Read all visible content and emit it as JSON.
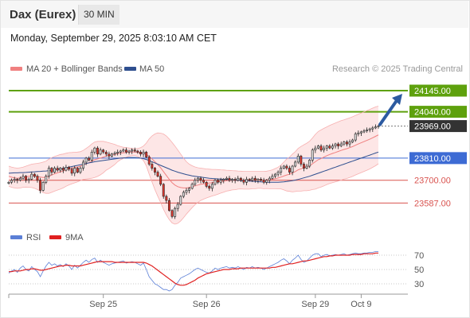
{
  "header": {
    "instrument": "Dax (Eurex)",
    "timeframe": "30 MIN",
    "datetime": "Monday, September 29, 2025 8:03:10 AM CET"
  },
  "legend": {
    "bollinger": "MA 20 + Bollinger Bands",
    "ma50": "MA 50",
    "rsi": "RSI",
    "ma9": "9MA",
    "credit": "Research © 2025 Trading Central"
  },
  "colors": {
    "resistance": "#5ea10d",
    "current": "#333333",
    "pivot": "#3d6bd4",
    "support": "#d9534f",
    "up_candle": "#dddddd",
    "down_candle": "#e0352b",
    "bollinger": "#f08080",
    "ma50": "#2f4f8f",
    "rsi": "#5b7fd6",
    "rsi_ma": "#e02020",
    "arrow": "#2c5aa0"
  },
  "chart_data": [
    {
      "type": "candlestick",
      "series_name": "Dax (Eurex)",
      "ylim": [
        23470,
        24220
      ],
      "levels": [
        {
          "label": "24145.00",
          "value": 24145,
          "kind": "resistance"
        },
        {
          "label": "24040.00",
          "value": 24040,
          "kind": "resistance"
        },
        {
          "label": "23969.00",
          "value": 23969,
          "kind": "current"
        },
        {
          "label": "23810.00",
          "value": 23810,
          "kind": "pivot"
        },
        {
          "label": "23700.00",
          "value": 23700,
          "kind": "support"
        },
        {
          "label": "23587.00",
          "value": 23587,
          "kind": "support"
        }
      ],
      "close": [
        23690,
        23700,
        23705,
        23700,
        23710,
        23720,
        23700,
        23705,
        23730,
        23720,
        23700,
        23650,
        23690,
        23720,
        23760,
        23740,
        23760,
        23750,
        23760,
        23750,
        23765,
        23755,
        23735,
        23760,
        23740,
        23760,
        23790,
        23810,
        23800,
        23840,
        23860,
        23830,
        23850,
        23840,
        23830,
        23820,
        23830,
        23835,
        23840,
        23845,
        23850,
        23840,
        23845,
        23850,
        23845,
        23840,
        23830,
        23840,
        23815,
        23780,
        23760,
        23740,
        23720,
        23680,
        23620,
        23600,
        23550,
        23520,
        23560,
        23580,
        23620,
        23640,
        23650,
        23660,
        23680,
        23700,
        23710,
        23700,
        23690,
        23670,
        23660,
        23680,
        23700,
        23690,
        23700,
        23705,
        23710,
        23700,
        23705,
        23700,
        23710,
        23700,
        23690,
        23705,
        23700,
        23710,
        23700,
        23705,
        23700,
        23690,
        23700,
        23710,
        23720,
        23730,
        23740,
        23760,
        23770,
        23760,
        23740,
        23770,
        23790,
        23820,
        23780,
        23760,
        23770,
        23800,
        23850,
        23860,
        23870,
        23850,
        23860,
        23870,
        23860,
        23870,
        23880,
        23870,
        23880,
        23890,
        23880,
        23890,
        23900,
        23930,
        23935,
        23940,
        23945,
        23950,
        23955,
        23960,
        23965,
        23969
      ],
      "arrow_target": 24145,
      "bollinger_middle": [
        23720,
        23715,
        23712,
        23710,
        23712,
        23715,
        23718,
        23720,
        23722,
        23721,
        23719,
        23716,
        23714,
        23715,
        23720,
        23726,
        23732,
        23737,
        23742,
        23746,
        23752,
        23757,
        23760,
        23763,
        23766,
        23770,
        23776,
        23782,
        23788,
        23795,
        23802,
        23806,
        23810,
        23815,
        23820,
        23822,
        23825,
        23828,
        23832,
        23835,
        23836,
        23838,
        23840,
        23840,
        23840,
        23838,
        23836,
        23834,
        23828,
        23818,
        23806,
        23792,
        23778,
        23762,
        23743,
        23724,
        23705,
        23688,
        23676,
        23668,
        23664,
        23662,
        23662,
        23664,
        23668,
        23672,
        23676,
        23680,
        23682,
        23684,
        23686,
        23688,
        23690,
        23692,
        23694,
        23696,
        23698,
        23699,
        23700,
        23700,
        23701,
        23701,
        23700,
        23700,
        23700,
        23701,
        23701,
        23702,
        23702,
        23701,
        23702,
        23703,
        23705,
        23708,
        23711,
        23716,
        23721,
        23726,
        23730,
        23736,
        23743,
        23752,
        23757,
        23762,
        23766,
        23772,
        23782,
        23792,
        23802,
        23808,
        23815,
        23822,
        23828,
        23833,
        23838,
        23843,
        23848,
        23853,
        23857,
        23862,
        23867,
        23874,
        23880,
        23886,
        23892,
        23898,
        23904,
        23911,
        23918,
        23925
      ],
      "bollinger_upper": [
        23770,
        23765,
        23762,
        23760,
        23762,
        23765,
        23770,
        23775,
        23780,
        23782,
        23784,
        23786,
        23790,
        23795,
        23805,
        23812,
        23818,
        23823,
        23828,
        23830,
        23834,
        23837,
        23838,
        23839,
        23840,
        23842,
        23848,
        23858,
        23868,
        23880,
        23890,
        23893,
        23893,
        23893,
        23890,
        23886,
        23882,
        23878,
        23872,
        23868,
        23864,
        23862,
        23860,
        23858,
        23857,
        23858,
        23862,
        23870,
        23885,
        23905,
        23920,
        23930,
        23935,
        23934,
        23930,
        23920,
        23905,
        23888,
        23870,
        23850,
        23830,
        23810,
        23792,
        23780,
        23772,
        23766,
        23762,
        23760,
        23758,
        23756,
        23755,
        23754,
        23754,
        23753,
        23752,
        23751,
        23750,
        23749,
        23748,
        23747,
        23746,
        23745,
        23744,
        23744,
        23744,
        23744,
        23744,
        23744,
        23744,
        23744,
        23745,
        23748,
        23752,
        23758,
        23765,
        23775,
        23790,
        23805,
        23815,
        23830,
        23842,
        23858,
        23868,
        23876,
        23884,
        23894,
        23910,
        23928,
        23942,
        23950,
        23958,
        23965,
        23972,
        23978,
        23984,
        23990,
        23996,
        24000,
        24005,
        24010,
        24015,
        24022,
        24028,
        24034,
        24040,
        24046,
        24052,
        24058,
        24064,
        24068
      ],
      "bollinger_lower": [
        23670,
        23665,
        23662,
        23660,
        23662,
        23665,
        23666,
        23665,
        23664,
        23660,
        23654,
        23646,
        23638,
        23635,
        23635,
        23640,
        23646,
        23651,
        23656,
        23662,
        23670,
        23677,
        23682,
        23687,
        23692,
        23698,
        23704,
        23706,
        23708,
        23710,
        23714,
        23719,
        23727,
        23737,
        23750,
        23758,
        23768,
        23778,
        23792,
        23802,
        23808,
        23814,
        23820,
        23822,
        23823,
        23818,
        23810,
        23798,
        23771,
        23731,
        23692,
        23654,
        23621,
        23590,
        23556,
        23528,
        23505,
        23488,
        23482,
        23486,
        23498,
        23514,
        23532,
        23548,
        23564,
        23578,
        23590,
        23600,
        23606,
        23612,
        23617,
        23622,
        23626,
        23631,
        23636,
        23641,
        23646,
        23649,
        23652,
        23653,
        23656,
        23657,
        23656,
        23656,
        23656,
        23658,
        23658,
        23660,
        23660,
        23658,
        23659,
        23658,
        23658,
        23658,
        23657,
        23657,
        23652,
        23647,
        23645,
        23642,
        23644,
        23646,
        23646,
        23648,
        23648,
        23650,
        23654,
        23656,
        23662,
        23666,
        23672,
        23679,
        23684,
        23688,
        23692,
        23696,
        23700,
        23706,
        23709,
        23714,
        23719,
        23726,
        23732,
        23738,
        23744,
        23750,
        23756,
        23764,
        23772,
        23782
      ],
      "ma50": [
        23735,
        23736,
        23737,
        23737,
        23738,
        23738,
        23739,
        23740,
        23741,
        23742,
        23743,
        23744,
        23745,
        23746,
        23748,
        23750,
        23752,
        23754,
        23756,
        23759,
        23762,
        23765,
        23768,
        23771,
        23774,
        23777,
        23780,
        23783,
        23786,
        23789,
        23792,
        23794,
        23796,
        23798,
        23800,
        23802,
        23804,
        23806,
        23808,
        23810,
        23811,
        23812,
        23813,
        23813,
        23813,
        23812,
        23810,
        23807,
        23803,
        23798,
        23792,
        23786,
        23780,
        23774,
        23768,
        23762,
        23756,
        23750,
        23745,
        23740,
        23736,
        23732,
        23728,
        23725,
        23722,
        23720,
        23718,
        23716,
        23714,
        23712,
        23710,
        23709,
        23708,
        23707,
        23706,
        23705,
        23704,
        23703,
        23702,
        23701,
        23700,
        23699,
        23698,
        23697,
        23696,
        23695,
        23694,
        23693,
        23692,
        23691,
        23690,
        23690,
        23690,
        23690,
        23690,
        23691,
        23692,
        23694,
        23696,
        23698,
        23701,
        23704,
        23708,
        23712,
        23716,
        23720,
        23725,
        23730,
        23735,
        23740,
        23745,
        23750,
        23755,
        23760,
        23765,
        23770,
        23775,
        23780,
        23785,
        23790,
        23795,
        23800,
        23805,
        23810,
        23815,
        23820,
        23825,
        23830,
        23835,
        23840
      ]
    },
    {
      "type": "line",
      "series": [
        {
          "name": "RSI",
          "values": [
            45,
            48,
            50,
            46,
            52,
            55,
            50,
            48,
            54,
            50,
            47,
            40,
            48,
            55,
            60,
            56,
            58,
            55,
            57,
            54,
            58,
            55,
            50,
            56,
            52,
            56,
            60,
            63,
            60,
            64,
            66,
            60,
            63,
            60,
            58,
            56,
            58,
            59,
            60,
            61,
            62,
            59,
            60,
            61,
            60,
            58,
            56,
            59,
            50,
            40,
            35,
            30,
            28,
            25,
            22,
            22,
            20,
            22,
            28,
            32,
            38,
            40,
            42,
            44,
            47,
            50,
            52,
            50,
            48,
            46,
            45,
            48,
            52,
            50,
            52,
            53,
            54,
            52,
            53,
            52,
            54,
            52,
            50,
            53,
            52,
            54,
            52,
            53,
            52,
            50,
            52,
            54,
            56,
            58,
            60,
            63,
            65,
            62,
            58,
            63,
            66,
            70,
            64,
            60,
            62,
            66,
            70,
            72,
            72,
            68,
            70,
            71,
            69,
            70,
            71,
            70,
            71,
            72,
            70,
            71,
            72,
            73,
            72,
            72,
            73,
            73,
            74,
            74,
            75,
            75
          ]
        },
        {
          "name": "9MA",
          "values": [
            47,
            47,
            48,
            48,
            48,
            49,
            50,
            50,
            51,
            51,
            50,
            49,
            49,
            50,
            51,
            52,
            53,
            54,
            55,
            55,
            56,
            56,
            55,
            55,
            55,
            55,
            56,
            57,
            58,
            59,
            60,
            61,
            61,
            61,
            61,
            61,
            61,
            60,
            60,
            60,
            60,
            60,
            60,
            60,
            60,
            60,
            60,
            60,
            59,
            57,
            55,
            52,
            49,
            46,
            43,
            40,
            37,
            34,
            31,
            29,
            28,
            28,
            29,
            31,
            33,
            35,
            38,
            40,
            42,
            44,
            45,
            46,
            47,
            48,
            49,
            50,
            50,
            50,
            51,
            51,
            51,
            52,
            52,
            52,
            52,
            52,
            52,
            52,
            52,
            52,
            52,
            52,
            53,
            53,
            54,
            55,
            56,
            57,
            58,
            58,
            59,
            60,
            61,
            62,
            62,
            63,
            64,
            65,
            66,
            67,
            68,
            68,
            69,
            69,
            70,
            70,
            70,
            70,
            70,
            70,
            71,
            71,
            71,
            71,
            72,
            72,
            72,
            72,
            73,
            73
          ]
        }
      ],
      "ylim": [
        20,
        80
      ],
      "yticks": [
        "70",
        "50",
        "30"
      ],
      "ytick_values": [
        70,
        50,
        30
      ],
      "xticks": [
        "Sep 25",
        "Sep 26",
        "Sep 29",
        "Oct 9"
      ],
      "xtick_index": [
        33,
        69,
        107,
        123
      ]
    }
  ]
}
